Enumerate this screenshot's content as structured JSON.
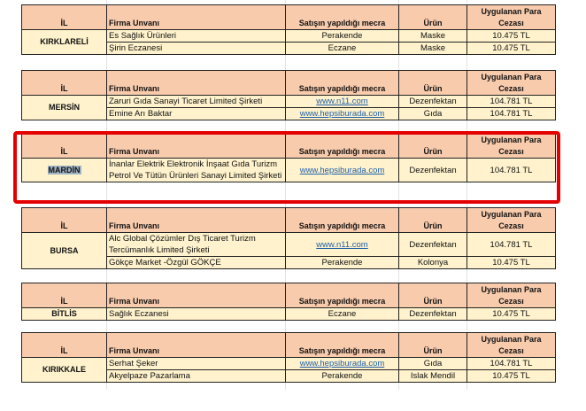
{
  "headers": {
    "il": "İL",
    "firma": "Firma Unvanı",
    "mecra": "Satışın yapıldığı mecra",
    "urun": "Ürün",
    "ceza": "Uygulanan Para Cezası"
  },
  "colors": {
    "header_bg": "#f8cbad",
    "row_bg": "#fff2cc",
    "highlight_border": "#e50000",
    "link": "#1f5fa8"
  },
  "blocks": [
    {
      "il": "KIRKLARELİ",
      "rows": [
        {
          "firma": "Es Sağlık Ürünleri",
          "mecra": "Perakende",
          "urun": "Maske",
          "ceza": "10.475 TL"
        },
        {
          "firma": "Şirin Eczanesi",
          "mecra": "Eczane",
          "urun": "Maske",
          "ceza": "10.475 TL"
        }
      ]
    },
    {
      "il": "MERSİN",
      "rows": [
        {
          "firma": "Zaruri Gıda Sanayi Ticaret Limited Şirketi",
          "mecra": "www.n11.com",
          "link": true,
          "urun": "Dezenfektan",
          "ceza": "104.781 TL"
        },
        {
          "firma": "Emine Arı Baktar",
          "mecra": "www.hepsiburada.com",
          "link": true,
          "urun": "Gıda",
          "ceza": "104.781 TL"
        }
      ]
    },
    {
      "il": "MARDİN",
      "highlighted": true,
      "rows": [
        {
          "firma": "İnanlar Elektrik Elektronik İnşaat Gıda Turizm Petrol Ve Tütün Ürünleri Sanayi Limited Şirketi",
          "mecra": "www.hepsiburada.com",
          "link": true,
          "urun": "Dezenfektan",
          "ceza": "104.781 TL"
        }
      ]
    },
    {
      "il": "BURSA",
      "rows": [
        {
          "firma": "Alc Global Çözümler Dış Ticaret Turizm Tercümanlık Limited Şirketi",
          "mecra": "www.n11.com",
          "link": true,
          "urun": "Dezenfektan",
          "ceza": "104.781 TL"
        },
        {
          "firma": "Gökçe Market -Özgül GÖKÇE",
          "mecra": "Perakende",
          "urun": "Kolonya",
          "ceza": "10.475 TL"
        }
      ]
    },
    {
      "il": "BİTLİS",
      "rows": [
        {
          "firma": "Sağlık Eczanesi",
          "mecra": "Eczane",
          "urun": "Dezenfektan",
          "ceza": "10.475 TL"
        }
      ]
    },
    {
      "il": "KIRIKKALE",
      "rows": [
        {
          "firma": "Serhat Şeker",
          "mecra": "www.hepsiburada.com",
          "link": true,
          "urun": "Gıda",
          "ceza": "104.781 TL"
        },
        {
          "firma": "Akyelpaze Pazarlama",
          "mecra": "Perakende",
          "urun": "Islak Mendil",
          "ceza": "10.475 TL"
        }
      ]
    }
  ]
}
